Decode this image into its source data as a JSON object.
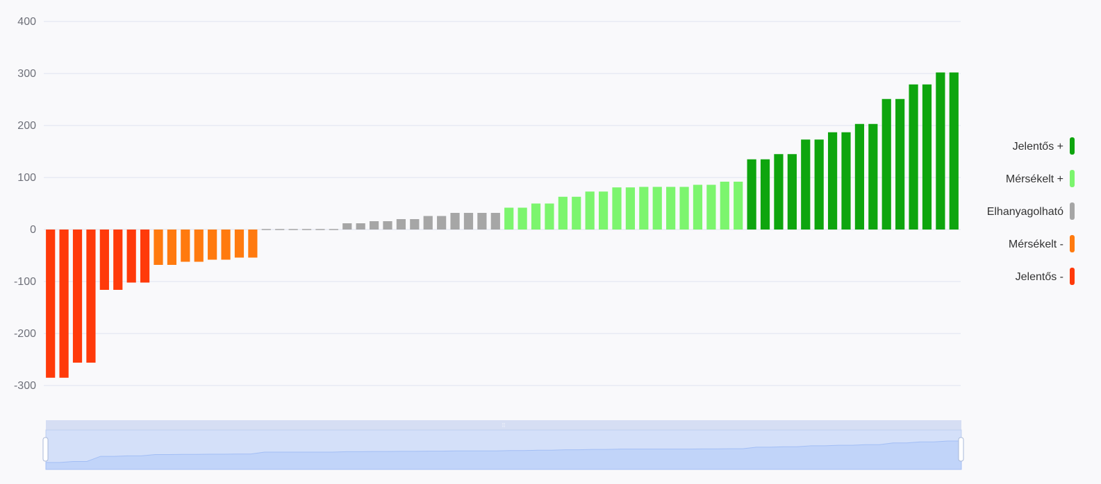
{
  "chart_data": {
    "type": "bar",
    "ylim": [
      -300,
      400
    ],
    "yticks": [
      "400",
      "300",
      "200",
      "100",
      "0",
      "-100",
      "-200",
      "-300"
    ],
    "grid": true,
    "legend_position": "right",
    "legend": [
      {
        "key": "jelentos_plus",
        "label": "Jelentős +",
        "color": "#0ea50e"
      },
      {
        "key": "merskelt_plus",
        "label": "Mérsékelt +",
        "color": "#7cf56e"
      },
      {
        "key": "elhanyagolhato",
        "label": "Elhanyagolható",
        "color": "#a6a6a6"
      },
      {
        "key": "merskelt_minus",
        "label": "Mérsékelt -",
        "color": "#ff7a0f"
      },
      {
        "key": "jelentos_minus",
        "label": "Jelentős -",
        "color": "#ff3a0a"
      }
    ],
    "values": [
      -285,
      -285,
      -256,
      -256,
      -116,
      -116,
      -102,
      -102,
      -68,
      -68,
      -62,
      -62,
      -58,
      -58,
      -54,
      -54,
      -1,
      -1,
      -1,
      -1,
      -1,
      -1,
      12,
      12,
      16,
      16,
      20,
      20,
      26,
      26,
      32,
      32,
      32,
      32,
      42,
      42,
      50,
      50,
      63,
      63,
      73,
      73,
      81,
      81,
      82,
      82,
      82,
      82,
      86,
      86,
      92,
      92,
      135,
      135,
      145,
      145,
      173,
      173,
      187,
      187,
      203,
      203,
      251,
      251,
      279,
      279,
      302,
      302
    ],
    "categories_by_bar": [
      "jelentos_minus",
      "jelentos_minus",
      "jelentos_minus",
      "jelentos_minus",
      "jelentos_minus",
      "jelentos_minus",
      "jelentos_minus",
      "jelentos_minus",
      "merskelt_minus",
      "merskelt_minus",
      "merskelt_minus",
      "merskelt_minus",
      "merskelt_minus",
      "merskelt_minus",
      "merskelt_minus",
      "merskelt_minus",
      "elhanyagolhato",
      "elhanyagolhato",
      "elhanyagolhato",
      "elhanyagolhato",
      "elhanyagolhato",
      "elhanyagolhato",
      "elhanyagolhato",
      "elhanyagolhato",
      "elhanyagolhato",
      "elhanyagolhato",
      "elhanyagolhato",
      "elhanyagolhato",
      "elhanyagolhato",
      "elhanyagolhato",
      "elhanyagolhato",
      "elhanyagolhato",
      "elhanyagolhato",
      "elhanyagolhato",
      "merskelt_plus",
      "merskelt_plus",
      "merskelt_plus",
      "merskelt_plus",
      "merskelt_plus",
      "merskelt_plus",
      "merskelt_plus",
      "merskelt_plus",
      "merskelt_plus",
      "merskelt_plus",
      "merskelt_plus",
      "merskelt_plus",
      "merskelt_plus",
      "merskelt_plus",
      "merskelt_plus",
      "merskelt_plus",
      "merskelt_plus",
      "merskelt_plus",
      "jelentos_plus",
      "jelentos_plus",
      "jelentos_plus",
      "jelentos_plus",
      "jelentos_plus",
      "jelentos_plus",
      "jelentos_plus",
      "jelentos_plus",
      "jelentos_plus",
      "jelentos_plus",
      "jelentos_plus",
      "jelentos_plus",
      "jelentos_plus",
      "jelentos_plus",
      "jelentos_plus",
      "jelentos_plus"
    ],
    "data_zoom": {
      "visible": true,
      "range_start_percent": 0,
      "range_end_percent": 100
    }
  }
}
